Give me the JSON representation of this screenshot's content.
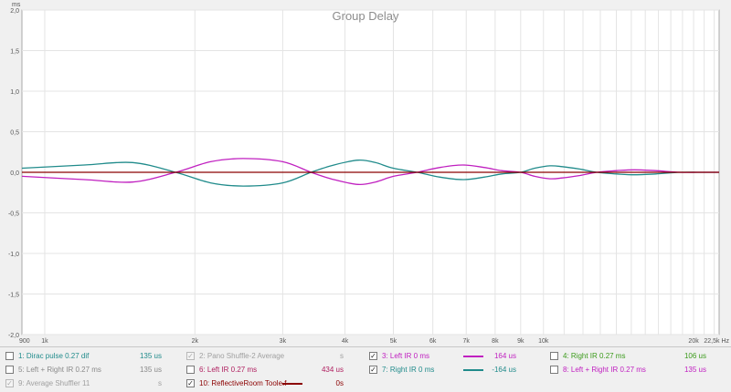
{
  "chart_data": {
    "type": "line",
    "title": "Group Delay",
    "y_unit": "ms",
    "x_unit": "Hz",
    "x_scale": "log",
    "xlim": [
      900,
      22500
    ],
    "ylim": [
      -2.0,
      2.0
    ],
    "grid": true,
    "x_ticks": [
      {
        "value": 900,
        "label": "900"
      },
      {
        "value": 1000,
        "label": "1k"
      },
      {
        "value": 2000,
        "label": "2k"
      },
      {
        "value": 3000,
        "label": "3k"
      },
      {
        "value": 4000,
        "label": "4k"
      },
      {
        "value": 5000,
        "label": "5k"
      },
      {
        "value": 6000,
        "label": "6k"
      },
      {
        "value": 7000,
        "label": "7k"
      },
      {
        "value": 8000,
        "label": "8k"
      },
      {
        "value": 9000,
        "label": "9k"
      },
      {
        "value": 10000,
        "label": "10k"
      },
      {
        "value": 20000,
        "label": "20k"
      },
      {
        "value": 22500,
        "label": "22,5k Hz"
      }
    ],
    "y_ticks": [
      {
        "value": 2.0,
        "label": "2,0"
      },
      {
        "value": 1.5,
        "label": "1,5"
      },
      {
        "value": 1.0,
        "label": "1,0"
      },
      {
        "value": 0.5,
        "label": "0,5"
      },
      {
        "value": 0.0,
        "label": "0,0"
      },
      {
        "value": -0.5,
        "label": "-0,5"
      },
      {
        "value": -1.0,
        "label": "-1,0"
      },
      {
        "value": -1.5,
        "label": "-1,5"
      },
      {
        "value": -2.0,
        "label": "-2,0"
      }
    ],
    "series": [
      {
        "name": "7: Right IR 0 ms",
        "color": "#208b8b",
        "x": [
          900,
          1200,
          1500,
          1830,
          2150,
          2500,
          3000,
          3420,
          3800,
          4250,
          4600,
          5000,
          5580,
          6200,
          6900,
          7600,
          8250,
          9000,
          9600,
          10300,
          10900,
          11800,
          12800,
          14000,
          15200,
          16800,
          18800,
          20500,
          22500
        ],
        "y": [
          0.05,
          0.09,
          0.12,
          0.0,
          -0.13,
          -0.17,
          -0.13,
          0.0,
          0.09,
          0.15,
          0.12,
          0.05,
          0.0,
          -0.06,
          -0.09,
          -0.06,
          -0.02,
          0.0,
          0.05,
          0.08,
          0.07,
          0.04,
          0.0,
          -0.02,
          -0.03,
          -0.02,
          0.0,
          0.0,
          0.0
        ]
      },
      {
        "name": "3: Left IR 0 ms",
        "color": "#c020c0",
        "x": [
          900,
          1200,
          1500,
          1830,
          2150,
          2500,
          3000,
          3420,
          3800,
          4250,
          4600,
          5000,
          5580,
          6200,
          6900,
          7600,
          8250,
          9000,
          9600,
          10300,
          10900,
          11800,
          12800,
          14000,
          15200,
          16800,
          18800,
          20500,
          22500
        ],
        "y": [
          -0.05,
          -0.09,
          -0.12,
          0.0,
          0.13,
          0.17,
          0.13,
          0.0,
          -0.09,
          -0.15,
          -0.12,
          -0.05,
          0.0,
          0.06,
          0.09,
          0.06,
          0.02,
          0.0,
          -0.05,
          -0.08,
          -0.07,
          -0.04,
          0.0,
          0.02,
          0.03,
          0.02,
          0.0,
          0.0,
          0.0
        ]
      },
      {
        "name": "10: ReflectiveRoom Toole.f",
        "color": "#8b0000",
        "x": [
          900,
          22500
        ],
        "y": [
          0.0,
          0.0
        ]
      }
    ]
  },
  "legend": [
    {
      "label": "1: Dirac pulse 0.27 dif",
      "value": "135 us",
      "checked": false,
      "enabled": true,
      "color": "#208b8b",
      "swatch": false
    },
    {
      "label": "2: Pano Shuffle-2 Average",
      "value": "s",
      "checked": true,
      "enabled": false,
      "color": "#a0a0a0",
      "swatch": false
    },
    {
      "label": "3: Left IR 0 ms",
      "value": "164 us",
      "checked": true,
      "enabled": true,
      "color": "#c020c0",
      "swatch": true
    },
    {
      "label": "4: Right IR 0.27 ms",
      "value": "106 us",
      "checked": false,
      "enabled": true,
      "color": "#3a9a1a",
      "swatch": false
    },
    {
      "label": "5: Left + Right IR 0.27 ms",
      "value": "135 us",
      "checked": false,
      "enabled": true,
      "color": "#8a8a8a",
      "swatch": false
    },
    {
      "label": "6: Left IR 0.27 ms",
      "value": "434 us",
      "checked": false,
      "enabled": true,
      "color": "#b02060",
      "swatch": false
    },
    {
      "label": "7: Right IR 0 ms",
      "value": "-164 us",
      "checked": true,
      "enabled": true,
      "color": "#208b8b",
      "swatch": true
    },
    {
      "label": "8: Left + Right IR 0.27 ms",
      "value": "135 us",
      "checked": false,
      "enabled": true,
      "color": "#c020c0",
      "swatch": false
    },
    {
      "label": "9: Average Shuffler 11",
      "value": "s",
      "checked": true,
      "enabled": false,
      "color": "#a0a0a0",
      "swatch": false
    },
    {
      "label": "10: ReflectiveRoom Toole.f",
      "value": "0s",
      "checked": true,
      "enabled": true,
      "color": "#8b0000",
      "swatch": true
    }
  ],
  "check_mark": "✓"
}
